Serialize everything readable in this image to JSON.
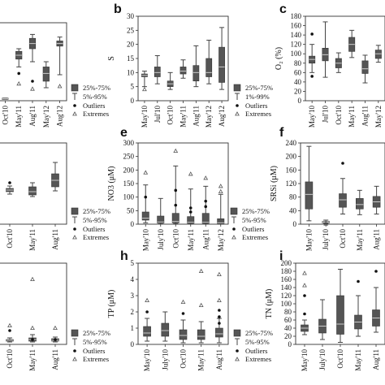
{
  "figure": {
    "description_note": "",
    "legend_default": {
      "box_label": "25%-75%",
      "whisker_label": "5%-95%",
      "outlier_label": "Outliers",
      "extreme_label": "Extremes"
    }
  },
  "chart_data": [
    {
      "panel": "a",
      "type": "box",
      "show_letter": false,
      "ylabel": "",
      "yticks": [],
      "ylim": [
        0,
        30
      ],
      "categories": [
        "Oct'10",
        "May'11",
        "Aug'11",
        "May'12",
        "Aug'12"
      ],
      "boxes": [
        {
          "q1": 0.6,
          "median": 0.8,
          "q3": 1.0,
          "low": 0.6,
          "high": 1.0,
          "outliers": [],
          "extremes": []
        },
        {
          "q1": 16,
          "median": 17.5,
          "q3": 19,
          "low": 13,
          "high": 20,
          "outliers": [
            10.5
          ],
          "extremes": [
            6.5
          ]
        },
        {
          "q1": 20,
          "median": 22,
          "q3": 24,
          "low": 15,
          "high": 25.5,
          "outliers": [
            7.5
          ],
          "extremes": [
            4.5
          ]
        },
        {
          "q1": 7.5,
          "median": 10.5,
          "q3": 13,
          "low": 5,
          "high": 15,
          "outliers": [],
          "extremes": []
        },
        {
          "q1": 21,
          "median": 22,
          "q3": 23,
          "low": 10,
          "high": 24.5,
          "outliers": [],
          "extremes": [
            5.5
          ]
        }
      ],
      "legend": {
        "box": "25%-75%",
        "whisker": "5%-95%",
        "outlier": "Outliers",
        "extreme": "Extremes"
      }
    },
    {
      "panel": "b",
      "type": "box",
      "show_letter": true,
      "ylabel": "S",
      "yticks": [
        0,
        5,
        10,
        15,
        20,
        25,
        30
      ],
      "ylim": [
        0,
        30
      ],
      "categories": [
        "May'10",
        "Jul'10",
        "Oct'10",
        "May'11",
        "Aug'11",
        "May'12",
        "Aug'12"
      ],
      "boxes": [
        {
          "q1": 8.5,
          "median": 9,
          "q3": 9.5,
          "low": 5,
          "high": 10.5,
          "outliers": [],
          "extremes": [
            4
          ]
        },
        {
          "q1": 8.5,
          "median": 10,
          "q3": 12,
          "low": 6,
          "high": 16,
          "outliers": [],
          "extremes": []
        },
        {
          "q1": 5,
          "median": 6,
          "q3": 7,
          "low": 4,
          "high": 10,
          "outliers": [],
          "extremes": []
        },
        {
          "q1": 9.5,
          "median": 10.5,
          "q3": 12,
          "low": 8,
          "high": 14.5,
          "outliers": [],
          "extremes": []
        },
        {
          "q1": 7,
          "median": 10,
          "q3": 12.5,
          "low": 5,
          "high": 19.5,
          "outliers": [],
          "extremes": []
        },
        {
          "q1": 8.5,
          "median": 10,
          "q3": 15,
          "low": 6,
          "high": 21.5,
          "outliers": [],
          "extremes": []
        },
        {
          "q1": 6.5,
          "median": 12,
          "q3": 19,
          "low": 4,
          "high": 26,
          "outliers": [],
          "extremes": []
        }
      ],
      "legend": {
        "box": "25%-75%",
        "whisker": "1%-99%",
        "outlier": "Outliers",
        "extreme": "Extremes"
      }
    },
    {
      "panel": "c",
      "type": "box",
      "show_letter": true,
      "ylabel": "O₂ (%)",
      "yticks": [
        0,
        20,
        40,
        60,
        80,
        100,
        120,
        140,
        160,
        180
      ],
      "ylim": [
        0,
        180
      ],
      "categories": [
        "May'10",
        "Jul'10",
        "Oct'10",
        "May'11",
        "Aug'11",
        "May'12"
      ],
      "boxes": [
        {
          "q1": 80,
          "median": 88,
          "q3": 95,
          "low": 60,
          "high": 120,
          "outliers": [
            52,
            142
          ],
          "extremes": []
        },
        {
          "q1": 85,
          "median": 98,
          "q3": 112,
          "low": 50,
          "high": 168,
          "outliers": [],
          "extremes": []
        },
        {
          "q1": 70,
          "median": 80,
          "q3": 90,
          "low": 60,
          "high": 102,
          "outliers": [],
          "extremes": []
        },
        {
          "q1": 105,
          "median": 120,
          "q3": 135,
          "low": 92,
          "high": 150,
          "outliers": [],
          "extremes": []
        },
        {
          "q1": 58,
          "median": 68,
          "q3": 85,
          "low": 38,
          "high": 97,
          "outliers": [],
          "extremes": []
        },
        {
          "q1": 90,
          "median": 100,
          "q3": 108,
          "low": 82,
          "high": 118,
          "outliers": [],
          "extremes": []
        }
      ],
      "legend": null
    },
    {
      "panel": "d",
      "type": "box",
      "show_letter": false,
      "ylabel": "",
      "yticks": [],
      "ylim": [
        0,
        100
      ],
      "categories": [
        "Oct'10",
        "May'11",
        "Aug'11"
      ],
      "boxes": [
        {
          "q1": 40,
          "median": 42,
          "q3": 44,
          "low": 37,
          "high": 47,
          "outliers": [
            51
          ],
          "extremes": []
        },
        {
          "q1": 36,
          "median": 40,
          "q3": 46,
          "low": 34,
          "high": 51,
          "outliers": [],
          "extremes": []
        },
        {
          "q1": 46,
          "median": 54,
          "q3": 62,
          "low": 41,
          "high": 76,
          "outliers": [],
          "extremes": []
        }
      ],
      "legend": {
        "box": "25%-75%",
        "whisker": "5%-95%",
        "outlier": "Outliers",
        "extreme": "Extremes"
      }
    },
    {
      "panel": "e",
      "type": "box",
      "show_letter": true,
      "ylabel": "NO3 (μM)",
      "yticks": [
        0,
        50,
        100,
        150,
        200,
        250,
        300
      ],
      "ylim": [
        0,
        300
      ],
      "categories": [
        "May'10",
        "July'10",
        "Oct'10",
        "May'11",
        "Aug'11",
        "May'12"
      ],
      "boxes": [
        {
          "q1": 15,
          "median": 22,
          "q3": 45,
          "low": 5,
          "high": 145,
          "outliers": [
            100
          ],
          "extremes": [
            190
          ]
        },
        {
          "q1": 4,
          "median": 8,
          "q3": 30,
          "low": 1,
          "high": 95,
          "outliers": [],
          "extremes": []
        },
        {
          "q1": 5,
          "median": 10,
          "q3": 40,
          "low": 2,
          "high": 215,
          "outliers": [
            125,
            70
          ],
          "extremes": [
            270
          ]
        },
        {
          "q1": 3,
          "median": 7,
          "q3": 28,
          "low": 1,
          "high": 130,
          "outliers": [
            45,
            60
          ],
          "extremes": [
            185
          ]
        },
        {
          "q1": 3,
          "median": 7,
          "q3": 40,
          "low": 1,
          "high": 140,
          "outliers": [
            65,
            85
          ],
          "extremes": [
            170
          ]
        },
        {
          "q1": 2,
          "median": 5,
          "q3": 20,
          "low": 1,
          "high": 110,
          "outliers": [],
          "extremes": [
            120,
            140
          ]
        }
      ],
      "legend": {
        "box": "25%-75%",
        "whisker": "5%-95%",
        "outlier": "Outliers",
        "extreme": "Extremes"
      }
    },
    {
      "panel": "f",
      "type": "box",
      "show_letter": true,
      "ylabel": "SRSi (μM)",
      "yticks": [
        0,
        40,
        80,
        120,
        160,
        200,
        240
      ],
      "ylim": [
        0,
        240
      ],
      "categories": [
        "May'10",
        "July'10",
        "Oct'10",
        "May'11",
        "Aug'11"
      ],
      "boxes": [
        {
          "q1": 45,
          "median": 88,
          "q3": 125,
          "low": 10,
          "high": 230,
          "outliers": [],
          "extremes": []
        },
        {
          "q1": 4,
          "median": 6,
          "q3": 8,
          "low": 2,
          "high": 12,
          "outliers": [],
          "extremes": [
            1
          ]
        },
        {
          "q1": 50,
          "median": 72,
          "q3": 90,
          "low": 30,
          "high": 135,
          "outliers": [
            180
          ],
          "extremes": []
        },
        {
          "q1": 45,
          "median": 58,
          "q3": 76,
          "low": 28,
          "high": 100,
          "outliers": [],
          "extremes": []
        },
        {
          "q1": 50,
          "median": 66,
          "q3": 82,
          "low": 30,
          "high": 112,
          "outliers": [],
          "extremes": []
        }
      ],
      "legend": null
    },
    {
      "panel": "g",
      "type": "box",
      "show_letter": false,
      "ylabel": "",
      "yticks": [],
      "ylim": [
        0,
        100
      ],
      "categories": [
        "Oct'10",
        "May'11",
        "Aug'11"
      ],
      "boxes": [
        {
          "q1": 4,
          "median": 5,
          "q3": 6,
          "low": 3,
          "high": 8,
          "outliers": [
            17
          ],
          "extremes": [
            23
          ]
        },
        {
          "q1": 4,
          "median": 6,
          "q3": 8,
          "low": 3,
          "high": 12,
          "outliers": [
            6
          ],
          "extremes": [
            80,
            20
          ]
        },
        {
          "q1": 4,
          "median": 5,
          "q3": 7,
          "low": 3,
          "high": 9,
          "outliers": [
            6
          ],
          "extremes": [
            20
          ]
        }
      ],
      "legend": {
        "box": "25%-75%",
        "whisker": "5%-95%",
        "outlier": "Outliers",
        "extreme": "Extremes"
      }
    },
    {
      "panel": "h",
      "type": "box",
      "show_letter": true,
      "ylabel": "TP (μM)",
      "yticks": [
        0,
        1,
        2,
        3,
        4,
        5
      ],
      "ylim": [
        0,
        5
      ],
      "categories": [
        "May'10",
        "July'10",
        "Oct'10",
        "May'11",
        "Aug'11"
      ],
      "boxes": [
        {
          "q1": 0.5,
          "median": 0.7,
          "q3": 1.1,
          "low": 0.2,
          "high": 1.6,
          "outliers": [
            2.0
          ],
          "extremes": [
            2.7
          ]
        },
        {
          "q1": 0.5,
          "median": 0.85,
          "q3": 1.3,
          "low": 0.2,
          "high": 2.0,
          "outliers": [],
          "extremes": []
        },
        {
          "q1": 0.3,
          "median": 0.55,
          "q3": 0.9,
          "low": 0.1,
          "high": 1.5,
          "outliers": [
            1.9
          ],
          "extremes": [
            2.6
          ]
        },
        {
          "q1": 0.3,
          "median": 0.5,
          "q3": 0.9,
          "low": 0.1,
          "high": 1.4,
          "outliers": [],
          "extremes": [
            4.5,
            2.4
          ]
        },
        {
          "q1": 0.45,
          "median": 0.65,
          "q3": 1.0,
          "low": 0.1,
          "high": 1.6,
          "outliers": [
            1.3,
            1.7,
            2.1
          ],
          "extremes": [
            4.3,
            2.7
          ]
        }
      ],
      "legend": {
        "box": "25%-75%",
        "whisker": "5%-95%",
        "outlier": "Outliers",
        "extreme": "Extremes"
      }
    },
    {
      "panel": "i",
      "type": "box",
      "show_letter": true,
      "ylabel": "TN (μM)",
      "yticks": [
        0,
        20,
        40,
        60,
        80,
        100,
        120,
        140,
        160,
        180,
        200
      ],
      "ylim": [
        0,
        200
      ],
      "categories": [
        "May'10",
        "July'10",
        "Oct'10",
        "May'11",
        "Aug'11"
      ],
      "boxes": [
        {
          "q1": 32,
          "median": 40,
          "q3": 48,
          "low": 24,
          "high": 60,
          "outliers": [
            75,
            120
          ],
          "extremes": [
            145,
            175
          ]
        },
        {
          "q1": 28,
          "median": 45,
          "q3": 62,
          "low": 12,
          "high": 110,
          "outliers": [],
          "extremes": []
        },
        {
          "q1": 25,
          "median": 50,
          "q3": 120,
          "low": 5,
          "high": 185,
          "outliers": [],
          "extremes": []
        },
        {
          "q1": 38,
          "median": 55,
          "q3": 72,
          "low": 20,
          "high": 120,
          "outliers": [
            155
          ],
          "extremes": []
        },
        {
          "q1": 45,
          "median": 65,
          "q3": 85,
          "low": 30,
          "high": 140,
          "outliers": [
            180
          ],
          "extremes": []
        }
      ],
      "legend": null
    }
  ]
}
